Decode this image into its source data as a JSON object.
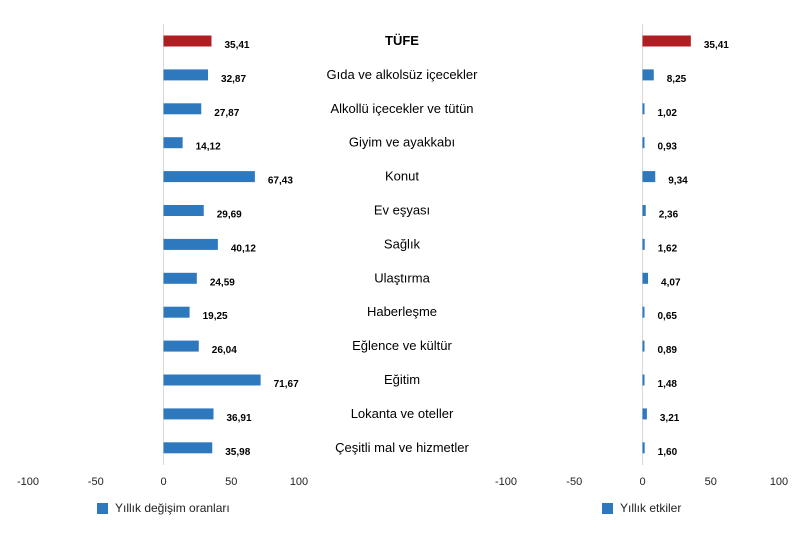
{
  "chart_data": [
    {
      "type": "bar",
      "orientation": "horizontal",
      "categories": [
        "TÜFE",
        "Gıda ve alkolsüz içecekler",
        "Alkollü içecekler ve tütün",
        "Giyim ve ayakkabı",
        "Konut",
        "Ev eşyası",
        "Sağlık",
        "Ulaştırma",
        "Haberleşme",
        "Eğlence ve kültür",
        "Eğitim",
        "Lokanta ve oteller",
        "Çeşitli mal ve hizmetler"
      ],
      "series": [
        {
          "name": "Yıllık değişim oranları",
          "values": [
            35.41,
            32.87,
            27.87,
            14.12,
            67.43,
            29.69,
            40.12,
            24.59,
            19.25,
            26.04,
            71.67,
            36.91,
            35.98
          ]
        }
      ],
      "value_labels": [
        "35,41",
        "32,87",
        "27,87",
        "14,12",
        "67,43",
        "29,69",
        "40,12",
        "24,59",
        "19,25",
        "26,04",
        "71,67",
        "36,91",
        "35,98"
      ],
      "xlim": [
        -100,
        100
      ],
      "xticks": [
        -100,
        -50,
        0,
        50,
        100
      ],
      "legend": "bottom",
      "colors": {
        "highlight": "#b01e23",
        "default": "#2e79bd"
      }
    },
    {
      "type": "bar",
      "orientation": "horizontal",
      "categories": [
        "TÜFE",
        "Gıda ve alkolsüz içecekler",
        "Alkollü içecekler ve tütün",
        "Giyim ve ayakkabı",
        "Konut",
        "Ev eşyası",
        "Sağlık",
        "Ulaştırma",
        "Haberleşme",
        "Eğlence ve kültür",
        "Eğitim",
        "Lokanta ve oteller",
        "Çeşitli mal ve hizmetler"
      ],
      "series": [
        {
          "name": "Yıllık etkiler",
          "values": [
            35.41,
            8.25,
            1.02,
            0.93,
            9.34,
            2.36,
            1.62,
            4.07,
            0.65,
            0.89,
            1.48,
            3.21,
            1.6
          ]
        }
      ],
      "value_labels": [
        "35,41",
        "8,25",
        "1,02",
        "0,93",
        "9,34",
        "2,36",
        "1,62",
        "4,07",
        "0,65",
        "0,89",
        "1,48",
        "3,21",
        "1,60"
      ],
      "xlim": [
        -100,
        100
      ],
      "xticks": [
        -100,
        -50,
        0,
        50,
        100
      ],
      "legend": "bottom",
      "colors": {
        "highlight": "#b01e23",
        "default": "#2e79bd"
      }
    }
  ]
}
